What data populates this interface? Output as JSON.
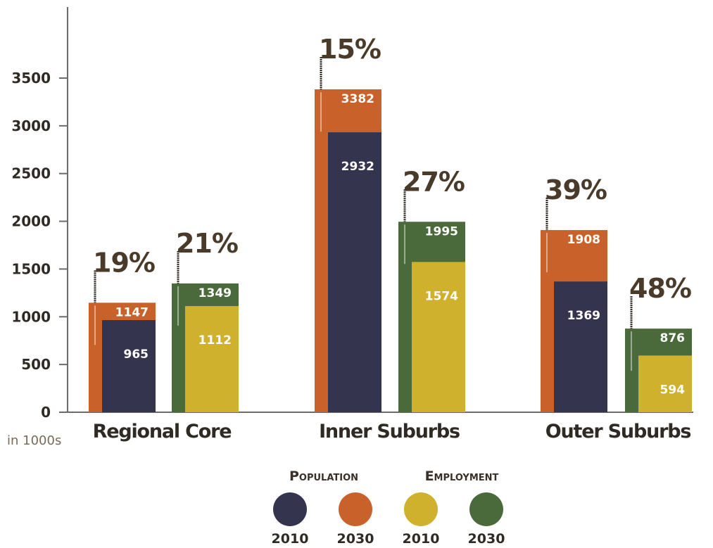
{
  "chart_data": {
    "type": "bar",
    "unit_label": "in 1000s",
    "ylim": [
      0,
      3500
    ],
    "yticks": [
      0,
      500,
      1000,
      1500,
      2000,
      2500,
      3000,
      3500
    ],
    "categories": [
      "Regional Core",
      "Inner Suburbs",
      "Outer Suburbs"
    ],
    "groups": [
      {
        "category": "Regional Core",
        "population": {
          "v2010": 965,
          "v2030": 1147,
          "growth": "19%"
        },
        "employment": {
          "v2010": 1112,
          "v2030": 1349,
          "growth": "21%"
        }
      },
      {
        "category": "Inner Suburbs",
        "population": {
          "v2010": 2932,
          "v2030": 3382,
          "growth": "15%"
        },
        "employment": {
          "v2010": 1574,
          "v2030": 1995,
          "growth": "27%"
        }
      },
      {
        "category": "Outer Suburbs",
        "population": {
          "v2010": 1369,
          "v2030": 1908,
          "growth": "39%"
        },
        "employment": {
          "v2010": 594,
          "v2030": 876,
          "growth": "48%"
        }
      }
    ],
    "legend": {
      "population_label": "Population",
      "employment_label": "Employment",
      "items": [
        {
          "series": "Population",
          "year": "2010",
          "color": "#34344f"
        },
        {
          "series": "Population",
          "year": "2030",
          "color": "#c8612a"
        },
        {
          "series": "Employment",
          "year": "2010",
          "color": "#cfb12e"
        },
        {
          "series": "Employment",
          "year": "2030",
          "color": "#4a6a3c"
        }
      ]
    },
    "colors": {
      "population_2010": "#34344f",
      "population_2030": "#c8612a",
      "employment_2010": "#cfb12e",
      "employment_2030": "#4a6a3c",
      "text": "#2f2a24"
    }
  }
}
